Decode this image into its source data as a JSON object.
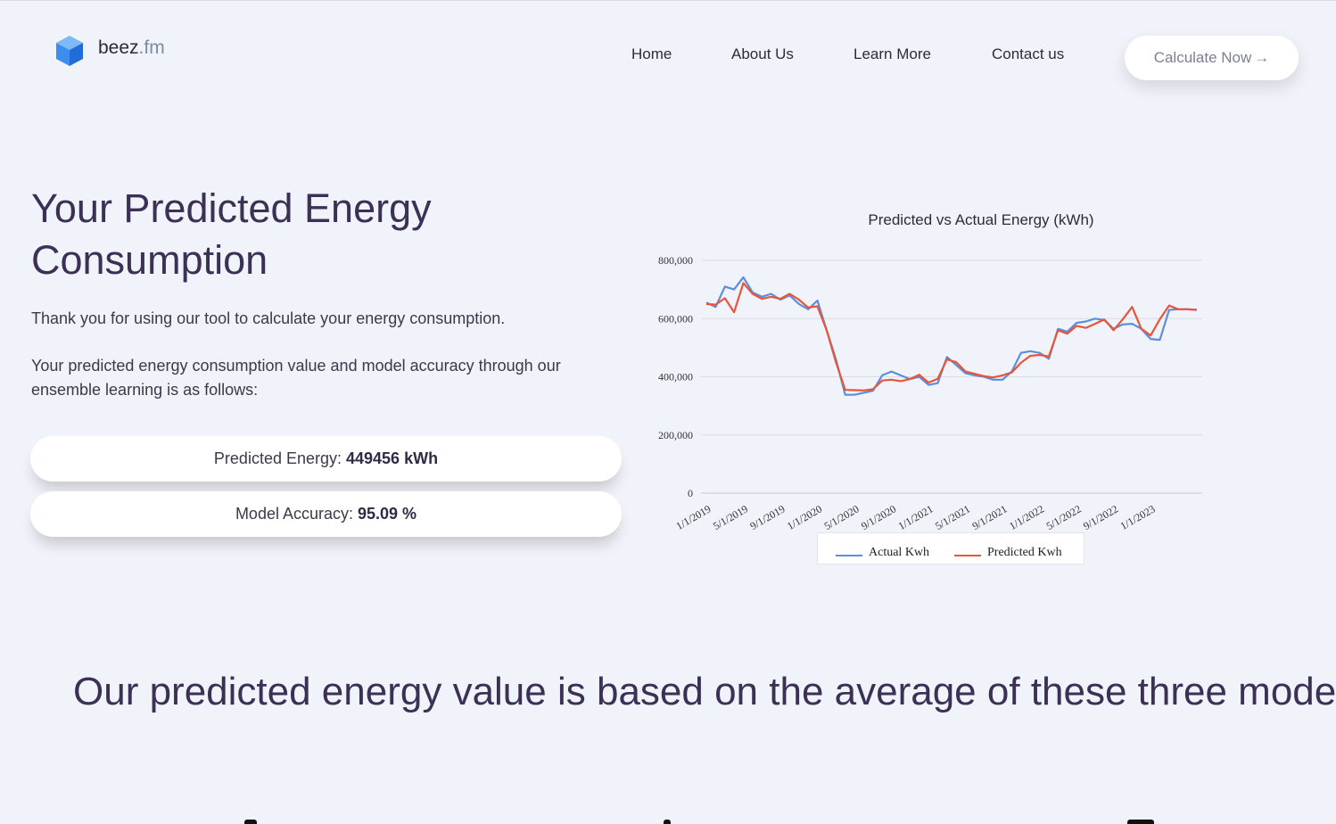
{
  "brand": {
    "name": "beez",
    "tld": ".fm",
    "logo_color": "#3d8df0"
  },
  "nav": {
    "items": [
      {
        "label": "Home"
      },
      {
        "label": "About Us"
      },
      {
        "label": "Learn More"
      },
      {
        "label": "Contact us"
      }
    ],
    "cta_label": "Calculate Now",
    "cta_icon": "arrow-right-icon"
  },
  "hero": {
    "title": "Your Predicted Energy Consumption",
    "paragraph1": "Thank you for using our tool to calculate your energy consumption.",
    "paragraph2": "Your predicted energy consumption value and model accuracy through our ensemble learning is as follows:"
  },
  "results": {
    "energy_label": "Predicted Energy:",
    "energy_value": "449456 kWh",
    "accuracy_label": "Model Accuracy:",
    "accuracy_value": "95.09 %"
  },
  "chart_data": {
    "type": "line",
    "title": "Predicted vs Actual Energy (kWh)",
    "xlabel": "",
    "ylabel": "",
    "ylim": [
      0,
      800000
    ],
    "yticks": [
      "0",
      "200,000",
      "400,000",
      "600,000",
      "800,000"
    ],
    "yticks_values": [
      0,
      200000,
      400000,
      600000,
      800000
    ],
    "x_tick_labels": [
      "1/1/2019",
      "5/1/2019",
      "9/1/2019",
      "1/1/2020",
      "5/1/2020",
      "9/1/2020",
      "1/1/2021",
      "5/1/2021",
      "9/1/2021",
      "1/1/2022",
      "5/1/2022",
      "9/1/2022",
      "1/1/2023"
    ],
    "x": [
      "1/1/2019",
      "2/1/2019",
      "3/1/2019",
      "4/1/2019",
      "5/1/2019",
      "6/1/2019",
      "7/1/2019",
      "8/1/2019",
      "9/1/2019",
      "10/1/2019",
      "11/1/2019",
      "12/1/2019",
      "1/1/2020",
      "2/1/2020",
      "3/1/2020",
      "4/1/2020",
      "5/1/2020",
      "6/1/2020",
      "7/1/2020",
      "8/1/2020",
      "9/1/2020",
      "10/1/2020",
      "11/1/2020",
      "12/1/2020",
      "1/1/2021",
      "2/1/2021",
      "3/1/2021",
      "4/1/2021",
      "5/1/2021",
      "6/1/2021",
      "7/1/2021",
      "8/1/2021",
      "9/1/2021",
      "10/1/2021",
      "11/1/2021",
      "12/1/2021",
      "1/1/2022",
      "2/1/2022",
      "3/1/2022",
      "4/1/2022",
      "5/1/2022",
      "6/1/2022",
      "7/1/2022",
      "8/1/2022",
      "9/1/2022",
      "10/1/2022",
      "11/1/2022",
      "12/1/2022",
      "1/1/2023",
      "2/1/2023",
      "3/1/2023",
      "4/1/2023",
      "5/1/2023",
      "6/1/2023"
    ],
    "series": [
      {
        "name": "Actual Kwh",
        "color": "#5b8fdc",
        "values": [
          655000,
          640000,
          710000,
          700000,
          742000,
          690000,
          675000,
          685000,
          665000,
          680000,
          650000,
          632000,
          662000,
          560000,
          460000,
          338000,
          338000,
          345000,
          352000,
          405000,
          418000,
          405000,
          392000,
          400000,
          372000,
          378000,
          468000,
          440000,
          412000,
          405000,
          400000,
          390000,
          390000,
          418000,
          482000,
          488000,
          482000,
          462000,
          565000,
          555000,
          585000,
          590000,
          600000,
          595000,
          565000,
          580000,
          582000,
          565000,
          530000,
          527000,
          630000,
          632000,
          632000,
          630000
        ]
      },
      {
        "name": "Predicted Kwh",
        "color": "#e8553b",
        "values": [
          650000,
          648000,
          670000,
          622000,
          722000,
          685000,
          668000,
          675000,
          668000,
          685000,
          665000,
          638000,
          642000,
          560000,
          450000,
          355000,
          354000,
          353000,
          357000,
          387000,
          390000,
          385000,
          392000,
          407000,
          380000,
          393000,
          460000,
          450000,
          418000,
          410000,
          402000,
          398000,
          405000,
          415000,
          448000,
          472000,
          475000,
          470000,
          560000,
          548000,
          575000,
          568000,
          582000,
          597000,
          560000,
          598000,
          640000,
          565000,
          542000,
          598000,
          645000,
          632000,
          632000,
          630000
        ]
      }
    ],
    "grid": true,
    "legend_position": "bottom"
  },
  "models_section": {
    "title": "Our predicted energy value is based on the average of these three models"
  }
}
